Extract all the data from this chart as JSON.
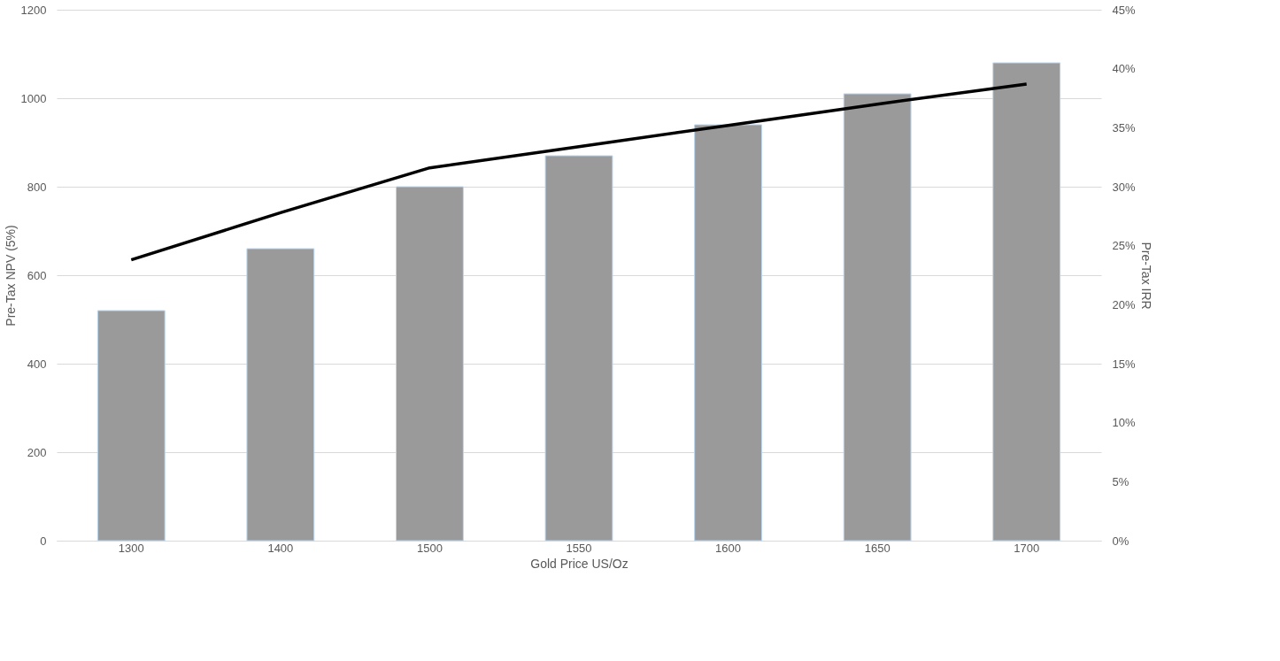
{
  "chart_data": {
    "type": "bar",
    "xlabel": "Gold Price US/Oz",
    "ylabel": "Pre-Tax NPV (5%)",
    "y2label": "Pre-Tax IRR",
    "categories": [
      "1300",
      "1400",
      "1500",
      "1550",
      "1600",
      "1650",
      "1700"
    ],
    "series": [
      {
        "color": "#9a9a9a",
        "values": [
          520,
          660,
          800,
          870,
          940,
          1010,
          1080
        ]
      },
      {
        "type": "line",
        "axis": "y2",
        "color": "#000000",
        "values": [
          23.8,
          27.8,
          31.6,
          33.4,
          35.2,
          37.0,
          38.7
        ]
      }
    ],
    "ylim": [
      0,
      1200
    ],
    "yticks": [
      0,
      200,
      400,
      600,
      800,
      1000,
      1200
    ],
    "y2lim": [
      0,
      45
    ],
    "y2ticks": [
      {
        "value": 0,
        "label": "0%"
      },
      {
        "value": 5,
        "label": "5%"
      },
      {
        "value": 10,
        "label": "10%"
      },
      {
        "value": 15,
        "label": "15%"
      },
      {
        "value": 20,
        "label": "20%"
      },
      {
        "value": 25,
        "label": "25%"
      },
      {
        "value": 30,
        "label": "30%"
      },
      {
        "value": 35,
        "label": "35%"
      },
      {
        "value": 40,
        "label": "40%"
      },
      {
        "value": 45,
        "label": "45%"
      }
    ],
    "grid": "y",
    "marker": "none",
    "line_style": "solid"
  }
}
